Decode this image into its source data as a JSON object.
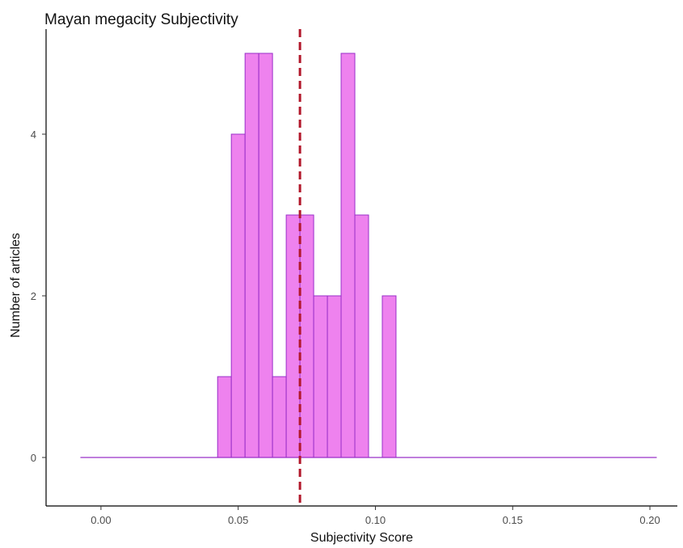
{
  "chart_data": {
    "type": "bar",
    "title": "Mayan megacity Subjectivity",
    "xlabel": "Subjectivity Score",
    "ylabel": "Number of articles",
    "xlim": [
      -0.02,
      0.21
    ],
    "ylim": [
      -0.6,
      5.3
    ],
    "xticks": [
      0.0,
      0.05,
      0.1,
      0.15,
      0.2
    ],
    "xtick_labels": [
      "0.00",
      "0.05",
      "0.10",
      "0.15",
      "0.20"
    ],
    "yticks": [
      0,
      2,
      4
    ],
    "ytick_labels": [
      "0",
      "2",
      "4"
    ],
    "bin_width": 0.005,
    "bins_start": -0.0075,
    "counts": [
      0,
      0,
      0,
      0,
      0,
      0,
      0,
      0,
      0,
      0,
      1,
      4,
      5,
      5,
      1,
      3,
      3,
      2,
      2,
      5,
      3,
      0,
      2,
      0,
      0,
      0,
      0,
      0,
      0,
      0,
      0,
      0,
      0,
      0,
      0,
      0,
      0,
      0,
      0,
      0,
      0,
      0
    ],
    "bar_fill": "#ee82ee",
    "bar_stroke": "#9a30c8",
    "vline": {
      "x": 0.0725,
      "color": "#b2182b",
      "style": "dashed"
    },
    "grid": false,
    "legend": "none"
  }
}
